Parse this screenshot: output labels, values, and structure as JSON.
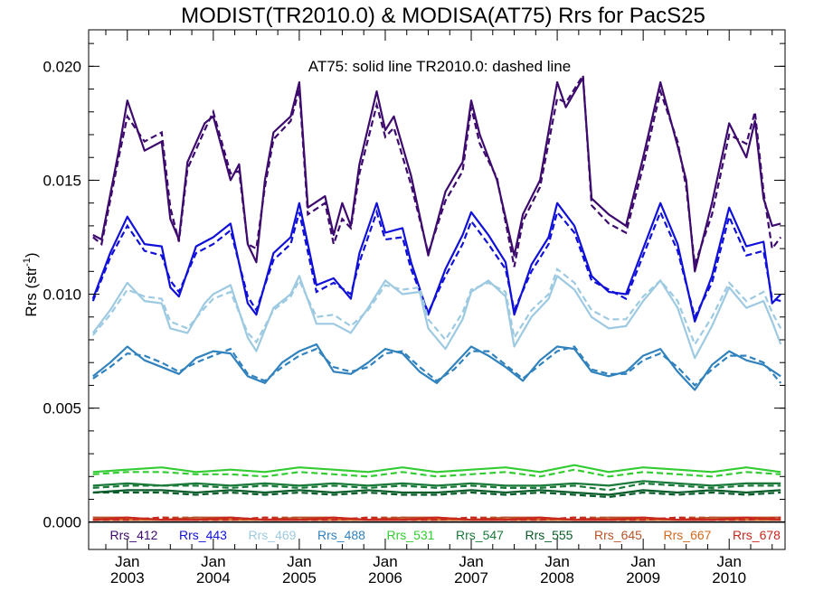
{
  "chart_data": {
    "type": "line",
    "title": "MODIST(TR2010.0) & MODISA(AT75)  Rrs for PacS25",
    "annotation": "AT75: solid line   TR2010.0: dashed line",
    "ylabel": "Rrs (str",
    "ylabel_sup": "-1",
    "ylabel_close": ")",
    "xlim": [
      2002.55,
      2010.65
    ],
    "ylim": [
      -0.0012,
      0.0216
    ],
    "yticks": [
      "0.000",
      "0.005",
      "0.010",
      "0.015",
      "0.020"
    ],
    "ytick_values": [
      0.0,
      0.005,
      0.01,
      0.015,
      0.02
    ],
    "xticks": [
      {
        "line1": "Jan",
        "line2": "2003",
        "value": 2003
      },
      {
        "line1": "Jan",
        "line2": "2004",
        "value": 2004
      },
      {
        "line1": "Jan",
        "line2": "2005",
        "value": 2005
      },
      {
        "line1": "Jan",
        "line2": "2006",
        "value": 2006
      },
      {
        "line1": "Jan",
        "line2": "2007",
        "value": 2007
      },
      {
        "line1": "Jan",
        "line2": "2008",
        "value": 2008
      },
      {
        "line1": "Jan",
        "line2": "2009",
        "value": 2009
      },
      {
        "line1": "Jan",
        "line2": "2010",
        "value": 2010
      }
    ],
    "zero_line": true,
    "grid": false,
    "legend_position": "bottom",
    "series": [
      {
        "name": "Rrs_412",
        "color": "#3d0a6e",
        "x": [
          2002.6,
          2002.7,
          2002.9,
          2003.0,
          2003.2,
          2003.4,
          2003.5,
          2003.6,
          2003.7,
          2003.9,
          2004.0,
          2004.2,
          2004.3,
          2004.4,
          2004.5,
          2004.6,
          2004.7,
          2004.9,
          2005.0,
          2005.1,
          2005.3,
          2005.4,
          2005.5,
          2005.6,
          2005.7,
          2005.9,
          2006.0,
          2006.1,
          2006.3,
          2006.5,
          2006.7,
          2006.9,
          2007.0,
          2007.1,
          2007.3,
          2007.5,
          2007.6,
          2007.8,
          2008.0,
          2008.1,
          2008.3,
          2008.4,
          2008.6,
          2008.8,
          2009.0,
          2009.2,
          2009.4,
          2009.5,
          2009.6,
          2009.8,
          2010.0,
          2010.2,
          2010.3,
          2010.4,
          2010.5,
          2010.6
        ],
        "at75": [
          0.0126,
          0.0124,
          0.0163,
          0.0185,
          0.0163,
          0.0167,
          0.0133,
          0.0124,
          0.0158,
          0.0175,
          0.0178,
          0.015,
          0.0157,
          0.0122,
          0.0114,
          0.015,
          0.0171,
          0.0178,
          0.0193,
          0.0138,
          0.0143,
          0.0126,
          0.014,
          0.013,
          0.0157,
          0.0189,
          0.0172,
          0.0178,
          0.0152,
          0.0117,
          0.0145,
          0.0158,
          0.0185,
          0.017,
          0.015,
          0.0117,
          0.0135,
          0.015,
          0.0193,
          0.0182,
          0.0195,
          0.0142,
          0.0135,
          0.013,
          0.016,
          0.0193,
          0.0165,
          0.015,
          0.011,
          0.014,
          0.0175,
          0.016,
          0.0176,
          0.0142,
          0.013,
          0.0131
        ],
        "tr2010": [
          0.0125,
          0.0122,
          0.016,
          0.0178,
          0.0167,
          0.0171,
          0.0138,
          0.0123,
          0.0155,
          0.0172,
          0.018,
          0.0153,
          0.0154,
          0.0122,
          0.012,
          0.0147,
          0.0168,
          0.0176,
          0.019,
          0.0135,
          0.014,
          0.0122,
          0.0133,
          0.0129,
          0.0153,
          0.0183,
          0.0169,
          0.0173,
          0.0148,
          0.0118,
          0.0141,
          0.0154,
          0.0182,
          0.0166,
          0.0151,
          0.0112,
          0.0132,
          0.0147,
          0.0186,
          0.0184,
          0.0196,
          0.0139,
          0.0131,
          0.0127,
          0.0156,
          0.0189,
          0.0167,
          0.0147,
          0.0113,
          0.0135,
          0.017,
          0.0166,
          0.018,
          0.0145,
          0.012,
          0.0125
        ]
      },
      {
        "name": "Rrs_443",
        "color": "#1010d8",
        "x": [
          2002.6,
          2002.8,
          2003.0,
          2003.2,
          2003.4,
          2003.5,
          2003.6,
          2003.8,
          2004.0,
          2004.2,
          2004.4,
          2004.5,
          2004.7,
          2004.9,
          2005.0,
          2005.2,
          2005.4,
          2005.6,
          2005.7,
          2005.9,
          2006.0,
          2006.2,
          2006.3,
          2006.5,
          2006.7,
          2006.9,
          2007.0,
          2007.2,
          2007.4,
          2007.5,
          2007.7,
          2007.9,
          2008.0,
          2008.2,
          2008.4,
          2008.6,
          2008.8,
          2009.0,
          2009.2,
          2009.4,
          2009.6,
          2009.8,
          2010.0,
          2010.2,
          2010.4,
          2010.5,
          2010.6
        ],
        "at75": [
          0.0098,
          0.0118,
          0.0134,
          0.0122,
          0.0121,
          0.0103,
          0.0099,
          0.0121,
          0.0125,
          0.0131,
          0.0096,
          0.0091,
          0.0118,
          0.0125,
          0.014,
          0.0104,
          0.0107,
          0.0098,
          0.0118,
          0.014,
          0.0127,
          0.0129,
          0.0114,
          0.0091,
          0.0111,
          0.0126,
          0.0136,
          0.0126,
          0.0114,
          0.0091,
          0.0113,
          0.0125,
          0.014,
          0.013,
          0.0108,
          0.0101,
          0.01,
          0.012,
          0.014,
          0.0122,
          0.0088,
          0.0108,
          0.0138,
          0.0121,
          0.0123,
          0.0096,
          0.01
        ],
        "tr2010": [
          0.0097,
          0.0116,
          0.013,
          0.0119,
          0.0117,
          0.0106,
          0.0101,
          0.0118,
          0.0122,
          0.0128,
          0.0099,
          0.0093,
          0.0115,
          0.0122,
          0.0136,
          0.0101,
          0.0105,
          0.01,
          0.0114,
          0.0136,
          0.0124,
          0.0125,
          0.0111,
          0.0092,
          0.0108,
          0.0122,
          0.0132,
          0.0122,
          0.0111,
          0.0093,
          0.011,
          0.0122,
          0.0136,
          0.0127,
          0.0106,
          0.0102,
          0.0098,
          0.0117,
          0.0136,
          0.0119,
          0.009,
          0.0105,
          0.0134,
          0.0117,
          0.0119,
          0.0098,
          0.0097
        ]
      },
      {
        "name": "Rrs_469",
        "color": "#9ecae1",
        "x": [
          2002.6,
          2002.8,
          2003.0,
          2003.2,
          2003.4,
          2003.5,
          2003.7,
          2003.9,
          2004.0,
          2004.2,
          2004.4,
          2004.5,
          2004.7,
          2004.9,
          2005.0,
          2005.2,
          2005.4,
          2005.6,
          2005.8,
          2006.0,
          2006.2,
          2006.4,
          2006.5,
          2006.7,
          2006.9,
          2007.0,
          2007.2,
          2007.4,
          2007.5,
          2007.7,
          2007.9,
          2008.0,
          2008.2,
          2008.4,
          2008.6,
          2008.8,
          2009.0,
          2009.2,
          2009.4,
          2009.6,
          2009.8,
          2010.0,
          2010.2,
          2010.4,
          2010.5,
          2010.6
        ],
        "at75": [
          0.0083,
          0.0093,
          0.0105,
          0.0097,
          0.0096,
          0.0085,
          0.0083,
          0.0096,
          0.01,
          0.0104,
          0.0081,
          0.0075,
          0.0094,
          0.01,
          0.0108,
          0.0087,
          0.0087,
          0.0083,
          0.0094,
          0.0106,
          0.01,
          0.0101,
          0.0085,
          0.0076,
          0.0089,
          0.0101,
          0.0106,
          0.0099,
          0.0077,
          0.009,
          0.0098,
          0.0108,
          0.0102,
          0.009,
          0.0085,
          0.0086,
          0.0097,
          0.0106,
          0.0094,
          0.0072,
          0.0086,
          0.0103,
          0.0094,
          0.0097,
          0.0088,
          0.0078
        ],
        "tr2010": [
          0.0082,
          0.0091,
          0.0102,
          0.0099,
          0.0098,
          0.0088,
          0.0085,
          0.0094,
          0.0098,
          0.0101,
          0.0083,
          0.0079,
          0.0093,
          0.0099,
          0.0106,
          0.009,
          0.0091,
          0.0086,
          0.0093,
          0.0104,
          0.0102,
          0.0103,
          0.0089,
          0.008,
          0.0092,
          0.0102,
          0.0105,
          0.0101,
          0.0081,
          0.0093,
          0.01,
          0.0111,
          0.0105,
          0.0093,
          0.0089,
          0.0089,
          0.0099,
          0.0106,
          0.0097,
          0.0078,
          0.009,
          0.0105,
          0.0097,
          0.0101,
          0.0092,
          0.0085
        ]
      },
      {
        "name": "Rrs_488",
        "color": "#3182bd",
        "x": [
          2002.6,
          2002.8,
          2003.0,
          2003.2,
          2003.4,
          2003.6,
          2003.8,
          2004.0,
          2004.2,
          2004.4,
          2004.6,
          2004.8,
          2005.0,
          2005.2,
          2005.4,
          2005.6,
          2005.8,
          2006.0,
          2006.2,
          2006.4,
          2006.6,
          2006.8,
          2007.0,
          2007.2,
          2007.4,
          2007.6,
          2007.8,
          2008.0,
          2008.2,
          2008.4,
          2008.6,
          2008.8,
          2009.0,
          2009.2,
          2009.4,
          2009.6,
          2009.8,
          2010.0,
          2010.2,
          2010.4,
          2010.6
        ],
        "at75": [
          0.0064,
          0.007,
          0.0077,
          0.0071,
          0.0068,
          0.0065,
          0.0072,
          0.0075,
          0.0074,
          0.0064,
          0.0061,
          0.007,
          0.0075,
          0.0078,
          0.0066,
          0.0065,
          0.007,
          0.0076,
          0.0074,
          0.0066,
          0.0061,
          0.0069,
          0.0077,
          0.0073,
          0.0068,
          0.0062,
          0.0071,
          0.0077,
          0.0076,
          0.0066,
          0.0064,
          0.0066,
          0.0073,
          0.0076,
          0.0066,
          0.0058,
          0.0069,
          0.0075,
          0.0071,
          0.0069,
          0.0064
        ],
        "tr2010": [
          0.0063,
          0.0068,
          0.0074,
          0.0073,
          0.007,
          0.0066,
          0.007,
          0.0073,
          0.0076,
          0.0065,
          0.0062,
          0.0068,
          0.0073,
          0.0076,
          0.0068,
          0.0066,
          0.0068,
          0.0074,
          0.0075,
          0.0068,
          0.0062,
          0.0067,
          0.0075,
          0.0075,
          0.0069,
          0.0063,
          0.0069,
          0.0075,
          0.0077,
          0.0067,
          0.0065,
          0.0065,
          0.0071,
          0.0074,
          0.0068,
          0.006,
          0.0067,
          0.0073,
          0.0073,
          0.007,
          0.0061
        ]
      },
      {
        "name": "Rrs_531",
        "color": "#33cc33",
        "x": [
          2002.6,
          2003.0,
          2003.4,
          2003.8,
          2004.2,
          2004.6,
          2005.0,
          2005.4,
          2005.8,
          2006.2,
          2006.6,
          2007.0,
          2007.4,
          2007.8,
          2008.2,
          2008.6,
          2009.0,
          2009.4,
          2009.8,
          2010.2,
          2010.6
        ],
        "at75": [
          0.0022,
          0.0023,
          0.0024,
          0.0022,
          0.0023,
          0.0022,
          0.0024,
          0.0023,
          0.0022,
          0.0024,
          0.0022,
          0.0023,
          0.0024,
          0.0022,
          0.0025,
          0.0022,
          0.0024,
          0.0023,
          0.0022,
          0.0024,
          0.0022
        ],
        "tr2010": [
          0.0021,
          0.0022,
          0.0022,
          0.0021,
          0.0021,
          0.002,
          0.0022,
          0.0021,
          0.002,
          0.0022,
          0.002,
          0.0021,
          0.0022,
          0.002,
          0.0023,
          0.002,
          0.0022,
          0.0021,
          0.002,
          0.0022,
          0.0021
        ]
      },
      {
        "name": "Rrs_547",
        "color": "#1a7a3a",
        "x": [
          2002.6,
          2003.0,
          2003.4,
          2003.8,
          2004.2,
          2004.6,
          2005.0,
          2005.4,
          2005.8,
          2006.2,
          2006.6,
          2007.0,
          2007.4,
          2007.8,
          2008.2,
          2008.6,
          2009.0,
          2009.4,
          2009.8,
          2010.2,
          2010.6
        ],
        "at75": [
          0.0016,
          0.0017,
          0.0016,
          0.0017,
          0.0016,
          0.0017,
          0.0016,
          0.0017,
          0.0016,
          0.0017,
          0.0016,
          0.0017,
          0.0016,
          0.0016,
          0.0017,
          0.0016,
          0.0018,
          0.0017,
          0.0016,
          0.0017,
          0.0017
        ],
        "tr2010": [
          0.0015,
          0.0016,
          0.0016,
          0.0016,
          0.0015,
          0.0016,
          0.0015,
          0.0016,
          0.0015,
          0.0016,
          0.0015,
          0.0016,
          0.0015,
          0.0015,
          0.0016,
          0.0014,
          0.0017,
          0.0016,
          0.0015,
          0.0016,
          0.0016
        ]
      },
      {
        "name": "Rrs_555",
        "color": "#0a5c2a",
        "x": [
          2002.6,
          2003.0,
          2003.4,
          2003.8,
          2004.2,
          2004.6,
          2005.0,
          2005.4,
          2005.8,
          2006.2,
          2006.6,
          2007.0,
          2007.4,
          2007.8,
          2008.2,
          2008.6,
          2009.0,
          2009.4,
          2009.8,
          2010.2,
          2010.6
        ],
        "at75": [
          0.0013,
          0.0014,
          0.0014,
          0.0013,
          0.0014,
          0.0013,
          0.0014,
          0.0013,
          0.0014,
          0.0013,
          0.0013,
          0.0014,
          0.0013,
          0.0014,
          0.0013,
          0.0012,
          0.0014,
          0.0013,
          0.0014,
          0.0013,
          0.0014
        ],
        "tr2010": [
          0.0013,
          0.0013,
          0.0013,
          0.0012,
          0.0013,
          0.0012,
          0.0013,
          0.0012,
          0.0013,
          0.0012,
          0.0012,
          0.0013,
          0.0012,
          0.0013,
          0.0012,
          0.0011,
          0.0013,
          0.0012,
          0.0013,
          0.0012,
          0.0013
        ]
      },
      {
        "name": "Rrs_645",
        "color": "#b8542a",
        "x": [
          2002.6,
          2003.0,
          2003.4,
          2003.8,
          2004.2,
          2004.6,
          2005.0,
          2005.4,
          2005.8,
          2006.2,
          2006.6,
          2007.0,
          2007.4,
          2007.8,
          2008.2,
          2008.6,
          2009.0,
          2009.4,
          2009.8,
          2010.2,
          2010.6
        ],
        "at75": [
          0.0002,
          0.0002,
          0.0001,
          0.0002,
          0.0002,
          0.0001,
          0.0002,
          0.0002,
          0.0001,
          0.0002,
          0.0002,
          0.0001,
          0.0002,
          0.0002,
          0.0001,
          0.0002,
          0.0002,
          0.0001,
          0.0002,
          0.0002,
          0.0002
        ],
        "tr2010": [
          0.0002,
          0.0001,
          0.0002,
          0.0002,
          0.0001,
          0.0002,
          0.0002,
          0.0001,
          0.0002,
          0.0002,
          0.0001,
          0.0002,
          0.0002,
          0.0001,
          0.0002,
          0.0002,
          0.0001,
          0.0002,
          0.0002,
          0.0001,
          0.0002
        ]
      },
      {
        "name": "Rrs_667",
        "color": "#d2691e",
        "x": [
          2002.6,
          2003.0,
          2003.4,
          2003.8,
          2004.2,
          2004.6,
          2005.0,
          2005.4,
          2005.8,
          2006.2,
          2006.6,
          2007.0,
          2007.4,
          2007.8,
          2008.2,
          2008.6,
          2009.0,
          2009.4,
          2009.8,
          2010.2,
          2010.6
        ],
        "at75": [
          0.0001,
          0.0001,
          0.0001,
          0.0001,
          0.0001,
          0.0001,
          0.0001,
          0.0001,
          0.0001,
          0.0001,
          0.0001,
          0.0001,
          0.0001,
          0.0001,
          0.0001,
          0.0001,
          0.0001,
          0.0001,
          0.0001,
          0.0001,
          0.0001
        ],
        "tr2010": [
          0.0001,
          0.0001,
          0.0001,
          0.0001,
          0.0001,
          0.0001,
          0.0001,
          0.0001,
          0.0001,
          0.0001,
          0.0001,
          0.0001,
          0.0001,
          0.0001,
          0.0001,
          0.0001,
          0.0001,
          0.0001,
          0.0001,
          0.0001,
          0.0001
        ]
      },
      {
        "name": "Rrs_678",
        "color": "#c8281e",
        "x": [
          2002.6,
          2003.0,
          2003.4,
          2003.8,
          2004.2,
          2004.6,
          2005.0,
          2005.4,
          2005.8,
          2006.2,
          2006.6,
          2007.0,
          2007.4,
          2007.8,
          2008.2,
          2008.6,
          2009.0,
          2009.4,
          2009.8,
          2010.2,
          2010.6
        ],
        "at75": [
          0.0001,
          0.0002,
          0.0001,
          0.0001,
          0.0002,
          0.0001,
          0.0001,
          0.0002,
          0.0001,
          0.0001,
          0.0002,
          0.0001,
          0.0001,
          0.0002,
          0.0001,
          0.0001,
          0.0002,
          0.0001,
          0.0001,
          0.0002,
          0.0001
        ],
        "tr2010": [
          0.0001,
          0.0001,
          0.0002,
          0.0001,
          0.0001,
          0.0002,
          0.0001,
          0.0001,
          0.0002,
          0.0001,
          0.0001,
          0.0002,
          0.0001,
          0.0001,
          0.0002,
          0.0001,
          0.0001,
          0.0002,
          0.0001,
          0.0001,
          0.0002
        ]
      }
    ]
  }
}
